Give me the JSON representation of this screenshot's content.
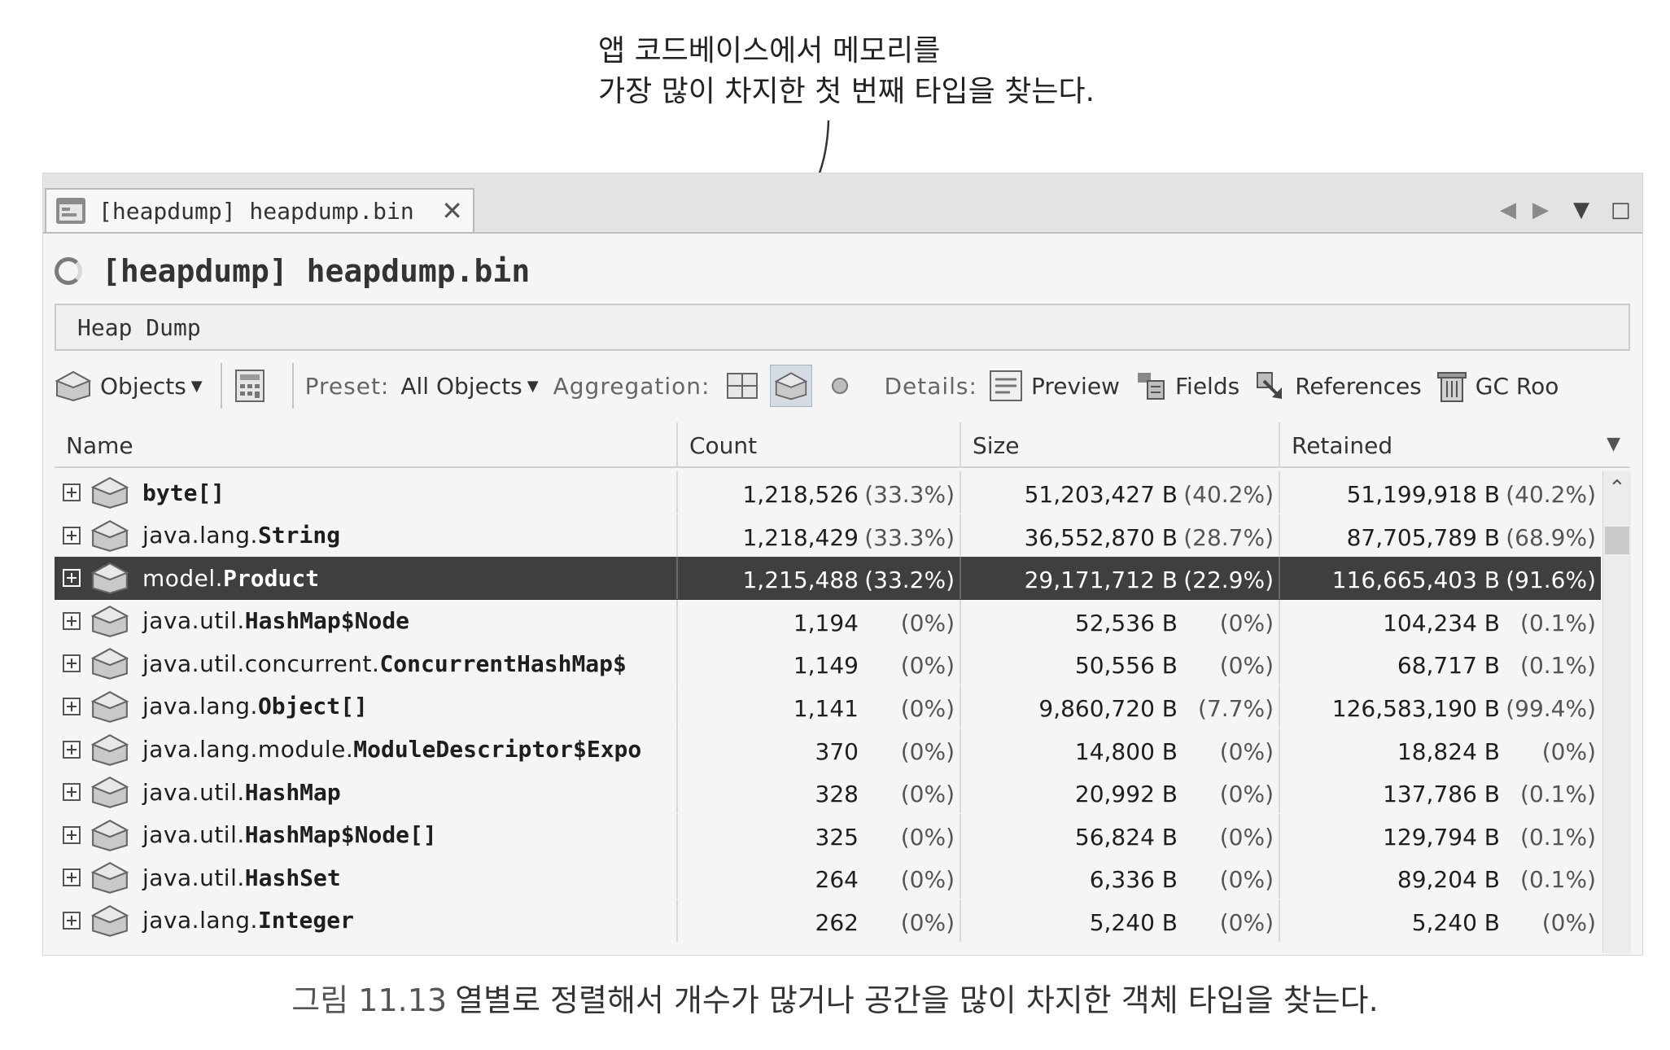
{
  "callout": {
    "line1": "앱 코드베이스에서 메모리를",
    "line2": "가장 많이 차지한 첫 번째 타입을 찾는다."
  },
  "tab": {
    "title": "[heapdump] heapdump.bin",
    "close": "✕"
  },
  "window_controls": {
    "prev": "◀",
    "next": "▶",
    "menu": "▼",
    "maximize": "□"
  },
  "editor": {
    "title": "[heapdump] heapdump.bin",
    "section": "Heap Dump"
  },
  "toolbar": {
    "objects": "Objects",
    "preset_label": "Preset:",
    "preset_value": "All Objects",
    "aggregation_label": "Aggregation:",
    "details_label": "Details:",
    "preview": "Preview",
    "fields": "Fields",
    "references": "References",
    "gc_roots": "GC Roo"
  },
  "table": {
    "columns": [
      "Name",
      "Count",
      "Size",
      "Retained"
    ],
    "rows": [
      {
        "pkg": "",
        "cls": "byte[]",
        "count": "1,218,526",
        "count_pct": "(33.3%)",
        "size": "51,203,427 B",
        "size_pct": "(40.2%)",
        "retained": "51,199,918 B",
        "retained_pct": "(40.2%)"
      },
      {
        "pkg": "java.lang.",
        "cls": "String",
        "count": "1,218,429",
        "count_pct": "(33.3%)",
        "size": "36,552,870 B",
        "size_pct": "(28.7%)",
        "retained": "87,705,789 B",
        "retained_pct": "(68.9%)"
      },
      {
        "pkg": "model.",
        "cls": "Product",
        "count": "1,215,488",
        "count_pct": "(33.2%)",
        "size": "29,171,712 B",
        "size_pct": "(22.9%)",
        "retained": "116,665,403 B",
        "retained_pct": "(91.6%)",
        "selected": true
      },
      {
        "pkg": "java.util.",
        "cls": "HashMap$Node",
        "count": "1,194",
        "count_pct": "(0%)",
        "size": "52,536 B",
        "size_pct": "(0%)",
        "retained": "104,234 B",
        "retained_pct": "(0.1%)"
      },
      {
        "pkg": "java.util.concurrent.",
        "cls": "ConcurrentHashMap$",
        "count": "1,149",
        "count_pct": "(0%)",
        "size": "50,556 B",
        "size_pct": "(0%)",
        "retained": "68,717 B",
        "retained_pct": "(0.1%)"
      },
      {
        "pkg": "java.lang.",
        "cls": "Object[]",
        "count": "1,141",
        "count_pct": "(0%)",
        "size": "9,860,720 B",
        "size_pct": "(7.7%)",
        "retained": "126,583,190 B",
        "retained_pct": "(99.4%)"
      },
      {
        "pkg": "java.lang.module.",
        "cls": "ModuleDescriptor$Expo",
        "count": "370",
        "count_pct": "(0%)",
        "size": "14,800 B",
        "size_pct": "(0%)",
        "retained": "18,824 B",
        "retained_pct": "(0%)"
      },
      {
        "pkg": "java.util.",
        "cls": "HashMap",
        "count": "328",
        "count_pct": "(0%)",
        "size": "20,992 B",
        "size_pct": "(0%)",
        "retained": "137,786 B",
        "retained_pct": "(0.1%)"
      },
      {
        "pkg": "java.util.",
        "cls": "HashMap$Node[]",
        "count": "325",
        "count_pct": "(0%)",
        "size": "56,824 B",
        "size_pct": "(0%)",
        "retained": "129,794 B",
        "retained_pct": "(0.1%)"
      },
      {
        "pkg": "java.util.",
        "cls": "HashSet",
        "count": "264",
        "count_pct": "(0%)",
        "size": "6,336 B",
        "size_pct": "(0%)",
        "retained": "89,204 B",
        "retained_pct": "(0.1%)"
      },
      {
        "pkg": "java.lang.",
        "cls": "Integer",
        "count": "262",
        "count_pct": "(0%)",
        "size": "5,240 B",
        "size_pct": "(0%)",
        "retained": "5,240 B",
        "retained_pct": "(0%)"
      }
    ]
  },
  "caption": {
    "figure": "그림 11.13",
    "text": "열별로 정렬해서 개수가 많거나 공간을 많이 차지한 객체 타입을 찾는다."
  },
  "colors": {
    "selected_row": "#3f3f3f",
    "accent_toggle": "#d5dbe3"
  }
}
